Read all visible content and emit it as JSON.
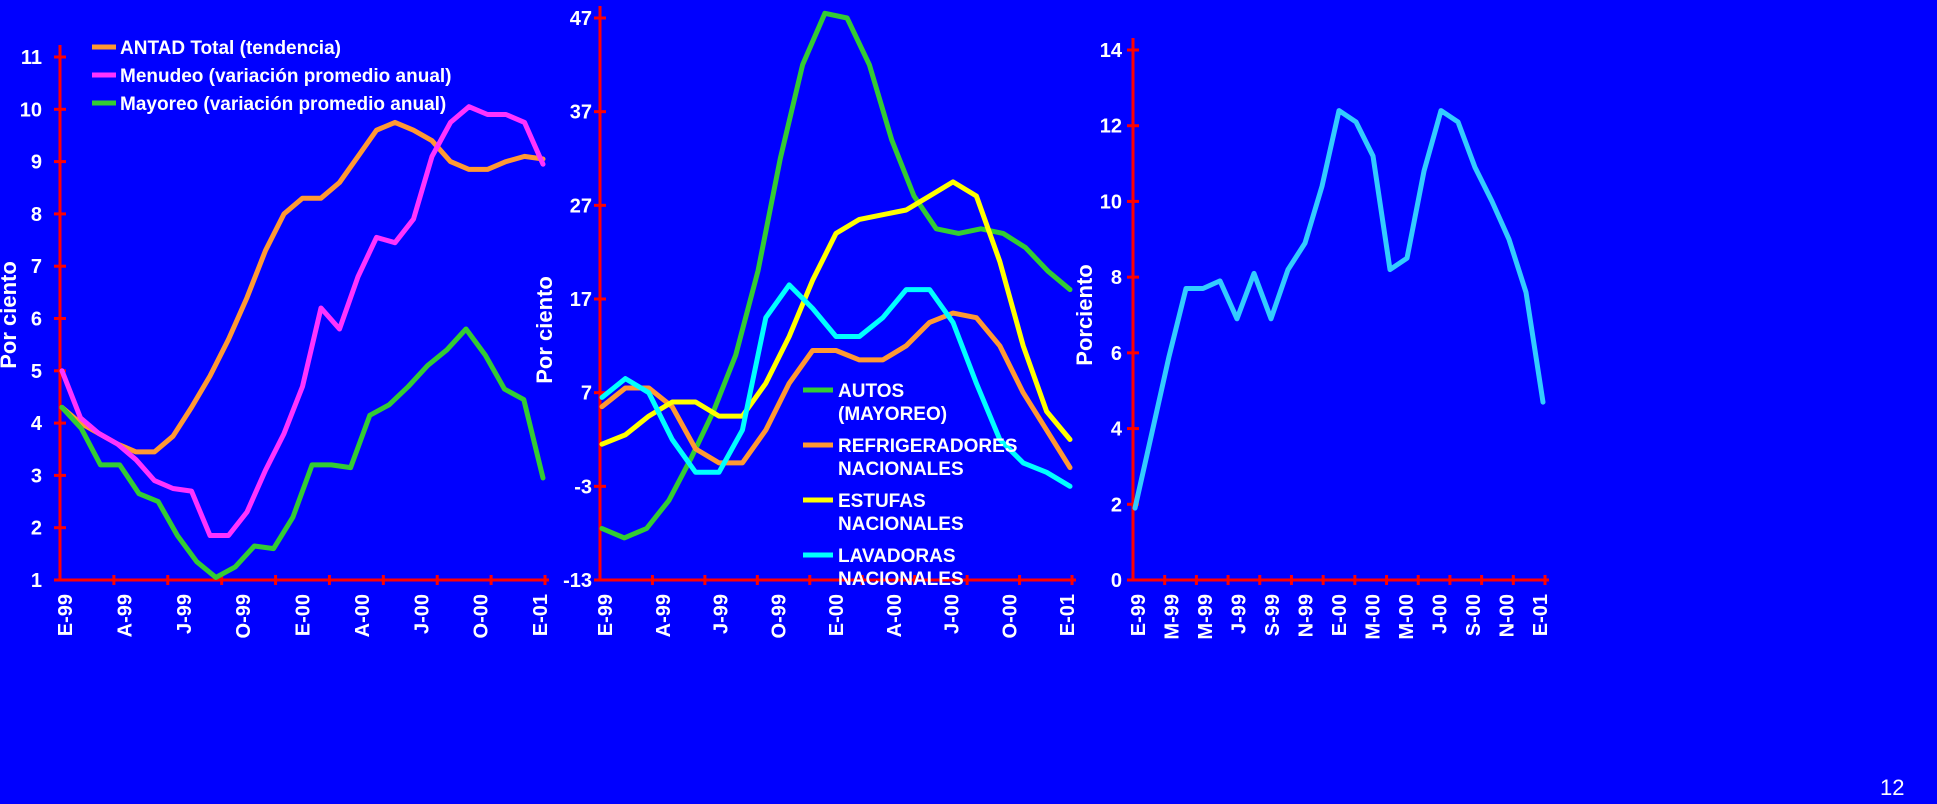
{
  "colors": {
    "background": "#0000FF",
    "axis": "#FF0000",
    "text": "#FFFFFF"
  },
  "page_number": "12",
  "chart_data": [
    {
      "type": "line",
      "ylabel": "Por ciento",
      "ylim": [
        1,
        11
      ],
      "yticks": [
        "1",
        "2",
        "3",
        "4",
        "5",
        "6",
        "7",
        "8",
        "9",
        "10",
        "11"
      ],
      "xticks": [
        "E-99",
        "A-99",
        "J-99",
        "O-99",
        "E-00",
        "A-00",
        "J-00",
        "O-00",
        "E-01"
      ],
      "x_count": 27,
      "legend_position": "top-left",
      "series": [
        {
          "name": "ANTAD Total  (tendencia)",
          "color": "#FF9933",
          "values": [
            4.3,
            4.0,
            3.8,
            3.6,
            3.45,
            3.45,
            3.75,
            4.3,
            4.9,
            5.6,
            6.4,
            7.3,
            8.0,
            8.3,
            8.3,
            8.6,
            9.1,
            9.6,
            9.75,
            9.6,
            9.4,
            9.0,
            8.85,
            8.85,
            9.0,
            9.1,
            9.05
          ]
        },
        {
          "name": "Menudeo (variación promedio anual)",
          "color": "#FF33FF",
          "values": [
            5.0,
            4.1,
            3.8,
            3.6,
            3.3,
            2.9,
            2.75,
            2.7,
            1.85,
            1.85,
            2.3,
            3.1,
            3.8,
            4.7,
            6.2,
            5.8,
            6.8,
            7.55,
            7.45,
            7.9,
            9.1,
            9.75,
            10.05,
            9.9,
            9.9,
            9.75,
            8.95
          ]
        },
        {
          "name": "Mayoreo (variación promedio anual)",
          "color": "#33CC33",
          "values": [
            4.3,
            3.9,
            3.2,
            3.2,
            2.65,
            2.5,
            1.85,
            1.35,
            1.05,
            1.25,
            1.65,
            1.6,
            2.2,
            3.2,
            3.2,
            3.15,
            4.15,
            4.35,
            4.7,
            5.1,
            5.4,
            5.8,
            5.3,
            4.65,
            4.45,
            2.95
          ]
        }
      ]
    },
    {
      "type": "line",
      "ylabel": "Por ciento",
      "ylim": [
        -13,
        47
      ],
      "yticks": [
        "-13",
        "-3",
        "7",
        "17",
        "27",
        "37",
        "47"
      ],
      "xticks": [
        "E-99",
        "A-99",
        "J-99",
        "O-99",
        "E-00",
        "A-00",
        "J-00",
        "O-00",
        "E-01"
      ],
      "x_count": 27,
      "legend_position": "bottom-right",
      "series": [
        {
          "name": "AUTOS (MAYOREO)",
          "label_lines": [
            "AUTOS",
            "(MAYOREO)"
          ],
          "color": "#33CC33",
          "values": [
            -7.5,
            -8.5,
            -7.5,
            -4.5,
            0,
            5,
            11,
            20,
            32,
            42,
            47.5,
            47,
            42,
            34,
            28,
            24.5,
            24,
            24.5,
            24,
            22.5,
            20,
            18
          ]
        },
        {
          "name": "REFRIGERADORES NACIONALES",
          "label_lines": [
            "REFRIGERADORES",
            "NACIONALES"
          ],
          "color": "#FF9933",
          "values": [
            5.5,
            7.5,
            7.5,
            5.5,
            1,
            -0.5,
            -0.5,
            3,
            8,
            11.5,
            11.5,
            10.5,
            10.5,
            12,
            14.5,
            15.5,
            15,
            12,
            7,
            3,
            -1
          ]
        },
        {
          "name": "ESTUFAS NACIONALES",
          "label_lines": [
            " ESTUFAS",
            "NACIONALES"
          ],
          "color": "#FFFF00",
          "values": [
            1.5,
            2.5,
            4.5,
            6,
            6,
            4.5,
            4.5,
            8,
            13,
            19,
            24,
            25.5,
            26,
            26.5,
            28,
            29.5,
            28,
            21,
            12,
            5,
            2
          ]
        },
        {
          "name": "LAVADORAS NACIONALES",
          "label_lines": [
            "LAVADORAS",
            "NACIONALES"
          ],
          "color": "#00FFFF",
          "values": [
            6.5,
            8.5,
            7,
            2,
            -1.5,
            -1.5,
            3,
            15,
            18.5,
            16,
            13,
            13,
            15,
            18,
            18,
            14.5,
            8,
            2,
            -0.5,
            -1.5,
            -3
          ]
        }
      ]
    },
    {
      "type": "line",
      "ylabel": "Porciento",
      "ylim": [
        0,
        14
      ],
      "yticks": [
        "0",
        "2",
        "4",
        "6",
        "8",
        "10",
        "12",
        "14"
      ],
      "xticks": [
        "E-99",
        "M-99",
        "M-99",
        "J-99",
        "S-99",
        "N-99",
        "E-00",
        "M-00",
        "M-00",
        "J-00",
        "S-00",
        "N-00",
        "E-01"
      ],
      "x_count": 25,
      "series": [
        {
          "name": "",
          "color": "#33CCFF",
          "values": [
            1.9,
            3.9,
            5.9,
            7.7,
            7.7,
            7.9,
            6.9,
            8.1,
            6.9,
            8.2,
            8.9,
            10.4,
            12.4,
            12.1,
            11.2,
            8.2,
            8.5,
            10.8,
            12.4,
            12.1,
            10.9,
            10.0,
            9.0,
            7.6,
            4.7
          ]
        }
      ]
    }
  ]
}
